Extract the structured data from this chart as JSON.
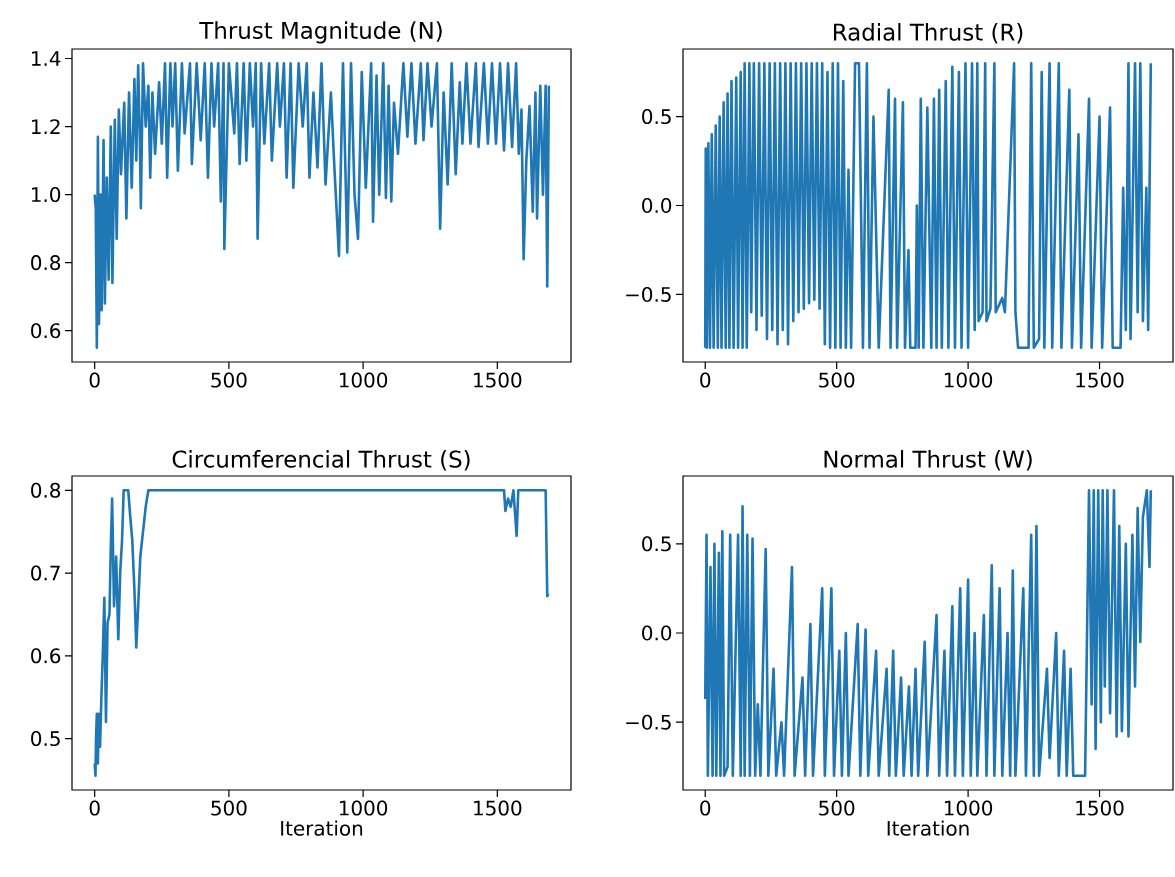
{
  "chart_data": [
    {
      "type": "line",
      "title": "Thrust Magnitude (N)",
      "xlim": [
        -84.5,
        1774.5
      ],
      "ylim": [
        0.508,
        1.428
      ],
      "xticks": [
        0,
        500,
        1000,
        1500
      ],
      "yticks": [
        {
          "value": 0.6,
          "label": "0.6"
        },
        {
          "value": 0.8,
          "label": "0.8"
        },
        {
          "value": 1.0,
          "label": "1.0"
        },
        {
          "value": 1.2,
          "label": "1.2"
        },
        {
          "value": 1.4,
          "label": "1.4"
        }
      ],
      "series": [
        {
          "color": "#1f77b4",
          "x": [
            0,
            4,
            8,
            12,
            16,
            22,
            26,
            33,
            38,
            45,
            52,
            60,
            66,
            75,
            82,
            90,
            98,
            110,
            118,
            128,
            138,
            148,
            155,
            162,
            168,
            172,
            180,
            190,
            200,
            207,
            215,
            225,
            240,
            250,
            262,
            270,
            282,
            290,
            300,
            310,
            325,
            335,
            355,
            362,
            380,
            395,
            410,
            422,
            435,
            445,
            460,
            470,
            480,
            483,
            500,
            520,
            530,
            540,
            555,
            565,
            578,
            590,
            600,
            607,
            620,
            632,
            650,
            660,
            680,
            690,
            705,
            715,
            730,
            740,
            760,
            775,
            790,
            800,
            815,
            830,
            845,
            860,
            880,
            893,
            910,
            925,
            941,
            955,
            968,
            981,
            995,
            1010,
            1030,
            1037,
            1050,
            1060,
            1075,
            1085,
            1095,
            1105,
            1115,
            1130,
            1150,
            1165,
            1180,
            1195,
            1215,
            1225,
            1240,
            1255,
            1275,
            1287,
            1300,
            1315,
            1330,
            1345,
            1360,
            1370,
            1385,
            1400,
            1420,
            1430,
            1450,
            1465,
            1480,
            1495,
            1510,
            1525,
            1540,
            1555,
            1570,
            1580,
            1590,
            1598,
            1608,
            1620,
            1632,
            1642,
            1648,
            1660,
            1670,
            1680,
            1686,
            1692
          ],
          "values": [
            1.0,
            0.96,
            0.55,
            1.17,
            0.62,
            1.0,
            0.66,
            1.16,
            0.68,
            1.05,
            0.75,
            1.2,
            0.74,
            1.22,
            0.87,
            1.25,
            1.06,
            1.27,
            0.93,
            1.3,
            1.02,
            1.34,
            1.1,
            1.38,
            1.18,
            0.96,
            1.386,
            1.2,
            1.32,
            1.05,
            1.3,
            1.12,
            1.33,
            1.15,
            1.386,
            1.05,
            1.386,
            1.2,
            1.386,
            1.07,
            1.386,
            1.18,
            1.386,
            1.09,
            1.386,
            1.16,
            1.386,
            1.05,
            1.386,
            1.2,
            1.386,
            0.98,
            1.386,
            0.84,
            1.386,
            1.18,
            1.386,
            1.09,
            1.386,
            1.1,
            1.386,
            1.2,
            1.386,
            0.87,
            1.386,
            1.15,
            1.386,
            1.1,
            1.386,
            1.2,
            1.386,
            1.05,
            1.386,
            1.02,
            1.386,
            1.2,
            1.386,
            1.05,
            1.3,
            1.08,
            1.386,
            1.03,
            1.3,
            1.08,
            0.82,
            1.386,
            0.83,
            1.386,
            1.0,
            0.87,
            1.36,
            1.02,
            1.386,
            0.92,
            1.35,
            1.0,
            1.386,
            0.99,
            1.32,
            0.98,
            1.27,
            1.12,
            1.386,
            1.17,
            1.386,
            1.15,
            1.386,
            1.16,
            1.386,
            1.2,
            1.386,
            0.9,
            1.3,
            1.03,
            1.386,
            1.06,
            1.33,
            1.15,
            1.386,
            1.15,
            1.386,
            1.14,
            1.386,
            1.15,
            1.386,
            1.15,
            1.386,
            1.13,
            1.386,
            1.14,
            1.386,
            1.12,
            1.25,
            0.81,
            1.1,
            1.26,
            0.95,
            1.3,
            0.93,
            1.32,
            1.0,
            1.32,
            0.73,
            1.32
          ]
        }
      ]
    },
    {
      "type": "line",
      "title": "Radial Thrust (R)",
      "xlim": [
        -84.5,
        1779.5
      ],
      "ylim": [
        -0.88,
        0.88
      ],
      "xticks": [
        0,
        500,
        1000,
        1500
      ],
      "yticks": [
        {
          "value": -0.5,
          "label": "−0.5"
        },
        {
          "value": 0.0,
          "label": "0.0"
        },
        {
          "value": 0.5,
          "label": "0.5"
        }
      ],
      "series": [
        {
          "color": "#1f77b4",
          "x": [
            0,
            2,
            6,
            12,
            18,
            25,
            32,
            40,
            48,
            55,
            62,
            70,
            78,
            85,
            92,
            100,
            108,
            118,
            125,
            135,
            142,
            150,
            158,
            168,
            175,
            185,
            195,
            205,
            215,
            225,
            235,
            245,
            255,
            265,
            275,
            285,
            295,
            305,
            315,
            325,
            335,
            345,
            355,
            365,
            375,
            385,
            395,
            405,
            415,
            425,
            435,
            445,
            455,
            465,
            475,
            485,
            495,
            505,
            515,
            525,
            535,
            545,
            555,
            570,
            585,
            600,
            615,
            625,
            640,
            660,
            698,
            705,
            722,
            730,
            752,
            760,
            773,
            780,
            800,
            805,
            812,
            820,
            830,
            845,
            860,
            870,
            880,
            890,
            900,
            915,
            925,
            940,
            950,
            965,
            975,
            990,
            1000,
            1015,
            1025,
            1035,
            1040,
            1055,
            1065,
            1070,
            1085,
            1100,
            1105,
            1130,
            1140,
            1175,
            1180,
            1190,
            1230,
            1240,
            1250,
            1270,
            1280,
            1290,
            1310,
            1320,
            1345,
            1355,
            1385,
            1395,
            1420,
            1430,
            1460,
            1470,
            1500,
            1510,
            1540,
            1550,
            1580,
            1590,
            1600,
            1610,
            1618,
            1635,
            1645,
            1655,
            1665,
            1678,
            1685,
            1695
          ],
          "values": [
            -0.8,
            0.32,
            -0.8,
            0.35,
            -0.8,
            0.4,
            -0.8,
            0.45,
            -0.8,
            0.5,
            -0.8,
            0.58,
            -0.8,
            0.63,
            -0.8,
            0.7,
            -0.8,
            0.72,
            -0.8,
            0.75,
            -0.8,
            0.8,
            -0.8,
            0.8,
            -0.6,
            0.8,
            -0.7,
            0.8,
            -0.62,
            0.8,
            -0.75,
            0.8,
            -0.7,
            0.8,
            -0.78,
            0.8,
            -0.7,
            0.8,
            -0.78,
            0.8,
            -0.65,
            0.8,
            -0.6,
            0.8,
            -0.58,
            0.8,
            -0.55,
            0.8,
            -0.53,
            0.8,
            -0.58,
            0.8,
            -0.78,
            0.75,
            -0.8,
            0.8,
            -0.8,
            0.8,
            -0.8,
            0.7,
            -0.8,
            0.2,
            -0.8,
            0.8,
            0.8,
            -0.8,
            0.8,
            -0.8,
            0.5,
            -0.8,
            0.65,
            -0.8,
            0.6,
            -0.8,
            0.58,
            -0.8,
            -0.25,
            -0.8,
            -0.8,
            0.0,
            -0.8,
            0.6,
            -0.8,
            0.55,
            -0.8,
            0.6,
            -0.8,
            0.65,
            -0.8,
            0.7,
            -0.8,
            0.78,
            -0.8,
            0.75,
            -0.8,
            0.8,
            -0.8,
            0.8,
            -0.7,
            0.8,
            -0.65,
            -0.6,
            0.8,
            -0.65,
            -0.58,
            0.8,
            -0.6,
            -0.52,
            -0.6,
            0.8,
            -0.6,
            -0.8,
            -0.8,
            0.8,
            -0.8,
            -0.75,
            0.75,
            -0.8,
            0.8,
            -0.8,
            0.8,
            -0.8,
            0.65,
            -0.8,
            0.4,
            -0.8,
            0.6,
            -0.8,
            0.5,
            -0.8,
            0.55,
            -0.8,
            -0.8,
            0.1,
            -0.7,
            0.8,
            -0.75,
            0.8,
            -0.6,
            0.8,
            -0.65,
            0.1,
            -0.7,
            0.8
          ]
        }
      ]
    },
    {
      "type": "line",
      "title": "Circumferencial Thrust (S)",
      "xlabel": "Iteration",
      "xlim": [
        -84.5,
        1774.5
      ],
      "ylim": [
        0.4378,
        0.8173
      ],
      "xticks": [
        0,
        500,
        1000,
        1500
      ],
      "yticks": [
        {
          "value": 0.5,
          "label": "0.5"
        },
        {
          "value": 0.6,
          "label": "0.6"
        },
        {
          "value": 0.7,
          "label": "0.7"
        },
        {
          "value": 0.8,
          "label": "0.8"
        }
      ],
      "series": [
        {
          "color": "#1f77b4",
          "x": [
            0,
            3,
            5,
            8,
            12,
            15,
            20,
            25,
            30,
            36,
            42,
            48,
            55,
            60,
            65,
            72,
            80,
            88,
            95,
            102,
            108,
            115,
            125,
            132,
            140,
            148,
            155,
            162,
            170,
            180,
            190,
            200,
            230,
            1525,
            1530,
            1540,
            1550,
            1560,
            1572,
            1578,
            1680,
            1686,
            1690
          ],
          "values": [
            0.47,
            0.455,
            0.5,
            0.53,
            0.47,
            0.53,
            0.49,
            0.55,
            0.6,
            0.67,
            0.52,
            0.64,
            0.65,
            0.73,
            0.79,
            0.66,
            0.72,
            0.62,
            0.7,
            0.74,
            0.8,
            0.8,
            0.8,
            0.77,
            0.74,
            0.68,
            0.61,
            0.66,
            0.72,
            0.75,
            0.78,
            0.8,
            0.8,
            0.8,
            0.775,
            0.79,
            0.78,
            0.8,
            0.745,
            0.8,
            0.8,
            0.672,
            0.675
          ]
        }
      ]
    },
    {
      "type": "line",
      "title": "Normal Thrust (W)",
      "xlabel": "Iteration",
      "xlim": [
        -84.5,
        1779.5
      ],
      "ylim": [
        -0.88,
        0.88
      ],
      "xticks": [
        0,
        500,
        1000,
        1500
      ],
      "yticks": [
        {
          "value": -0.5,
          "label": "−0.5"
        },
        {
          "value": 0.0,
          "label": "0.0"
        },
        {
          "value": 0.5,
          "label": "0.5"
        }
      ],
      "series": [
        {
          "color": "#1f77b4",
          "x": [
            0,
            5,
            10,
            20,
            28,
            35,
            42,
            52,
            58,
            65,
            72,
            85,
            95,
            105,
            125,
            135,
            142,
            150,
            160,
            170,
            180,
            190,
            200,
            210,
            230,
            240,
            260,
            270,
            290,
            300,
            330,
            340,
            370,
            380,
            400,
            410,
            445,
            455,
            480,
            490,
            510,
            520,
            535,
            545,
            580,
            590,
            610,
            620,
            650,
            660,
            690,
            700,
            715,
            725,
            745,
            755,
            775,
            785,
            800,
            810,
            835,
            845,
            880,
            890,
            910,
            920,
            940,
            950,
            970,
            980,
            1000,
            1010,
            1025,
            1035,
            1060,
            1070,
            1090,
            1100,
            1120,
            1130,
            1150,
            1160,
            1170,
            1180,
            1210,
            1220,
            1240,
            1250,
            1260,
            1270,
            1300,
            1310,
            1335,
            1345,
            1365,
            1375,
            1390,
            1400,
            1445,
            1460,
            1470,
            1478,
            1485,
            1495,
            1505,
            1512,
            1520,
            1530,
            1540,
            1555,
            1565,
            1575,
            1585,
            1600,
            1610,
            1625,
            1635,
            1645,
            1655,
            1665,
            1670,
            1680,
            1690,
            1695
          ],
          "values": [
            -0.37,
            0.55,
            -0.8,
            0.37,
            -0.8,
            0.5,
            -0.8,
            0.45,
            -0.8,
            0.57,
            -0.8,
            -0.75,
            0.55,
            -0.8,
            0.55,
            -0.8,
            0.71,
            -0.8,
            0.55,
            -0.8,
            0.53,
            -0.8,
            -0.4,
            -0.8,
            0.47,
            -0.8,
            -0.2,
            -0.8,
            -0.5,
            -0.8,
            0.37,
            -0.8,
            -0.25,
            -0.8,
            0.05,
            -0.8,
            0.25,
            -0.8,
            0.25,
            -0.8,
            -0.1,
            -0.8,
            0.0,
            -0.8,
            0.05,
            -0.8,
            0.02,
            -0.8,
            -0.1,
            -0.8,
            -0.2,
            -0.8,
            -0.1,
            -0.8,
            -0.25,
            -0.8,
            -0.3,
            -0.8,
            -0.2,
            -0.8,
            -0.05,
            -0.8,
            0.1,
            -0.8,
            -0.1,
            -0.8,
            0.15,
            -0.8,
            0.25,
            -0.8,
            0.3,
            -0.8,
            0.0,
            -0.8,
            0.1,
            -0.8,
            0.38,
            -0.8,
            0.25,
            -0.8,
            0.0,
            -0.8,
            0.35,
            -0.8,
            0.25,
            -0.8,
            0.55,
            -0.8,
            0.6,
            -0.8,
            -0.2,
            -0.7,
            0.0,
            -0.8,
            -0.1,
            -0.8,
            -0.2,
            -0.8,
            -0.8,
            0.8,
            -0.4,
            0.8,
            -0.65,
            0.8,
            -0.5,
            0.8,
            -0.3,
            0.8,
            -0.45,
            0.8,
            -0.58,
            0.6,
            -0.55,
            0.5,
            -0.58,
            0.55,
            -0.3,
            0.7,
            -0.05,
            0.65,
            0.7,
            0.8,
            0.37,
            0.8
          ]
        }
      ]
    }
  ]
}
